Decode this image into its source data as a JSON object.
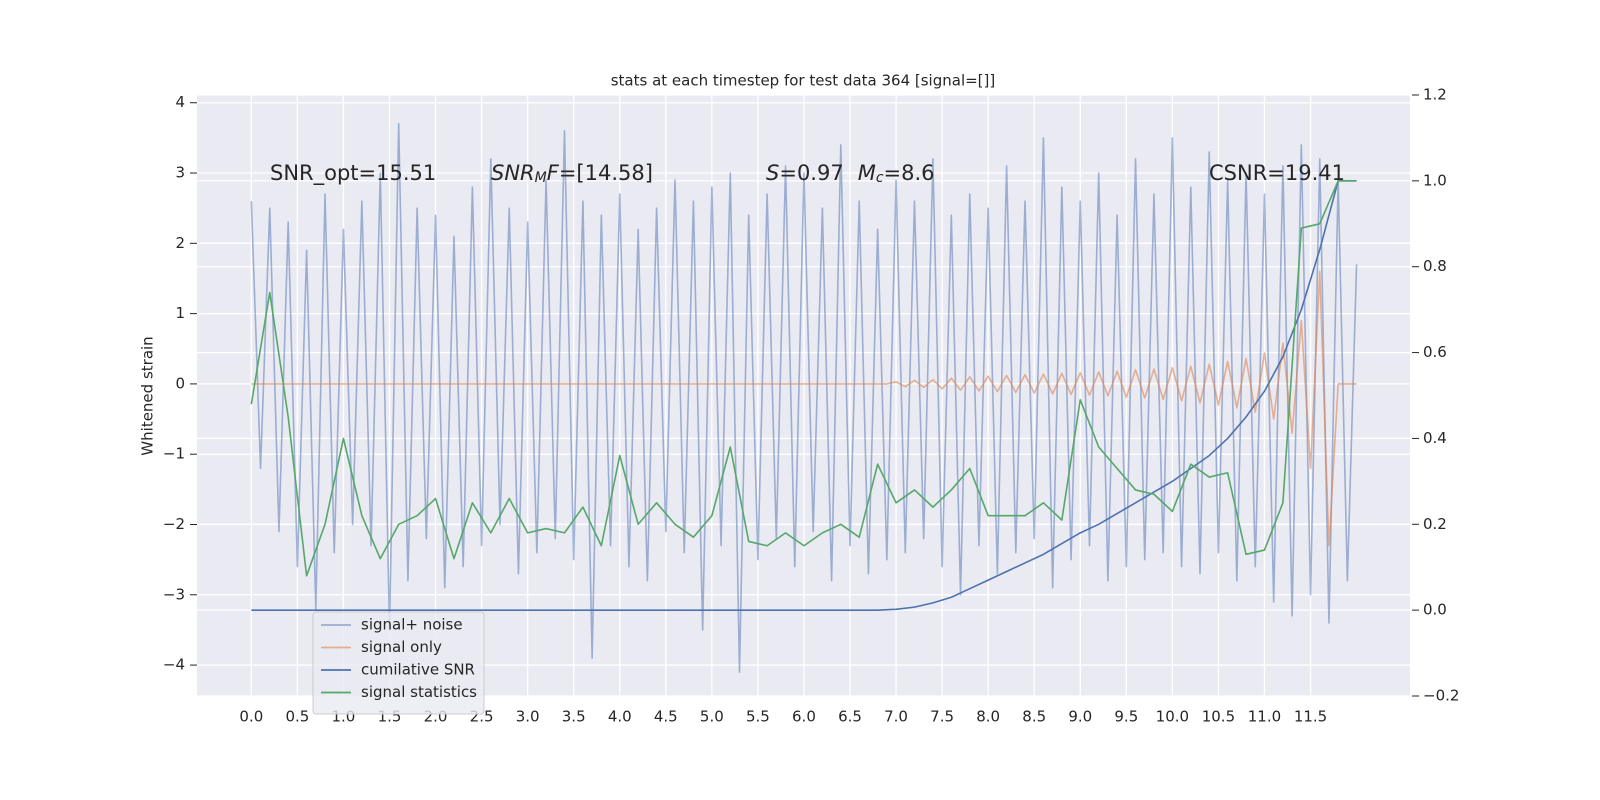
{
  "chart_data": {
    "type": "line",
    "title": "stats at each timestep for test data 364 [signal=[]]",
    "ylabel": "Whitened strain",
    "xlim": [
      -0.59,
      12.58
    ],
    "ylim": [
      -4.44,
      4.11
    ],
    "y2lim": [
      -0.2,
      1.2
    ],
    "grid": true,
    "legend": "lower left",
    "background": "#eaeaf2",
    "xticks": [
      {
        "value": 0,
        "label": "0.0"
      },
      0.5,
      {
        "value": 1,
        "label": "1.0"
      },
      1.5,
      {
        "value": 2,
        "label": "2.0"
      },
      2.5,
      {
        "value": 3,
        "label": "3.0"
      },
      3.5,
      {
        "value": 4,
        "label": "4.0"
      },
      4.5,
      {
        "value": 5,
        "label": "5.0"
      },
      5.5,
      {
        "value": 6,
        "label": "6.0"
      },
      6.5,
      {
        "value": 7,
        "label": "7.0"
      },
      7.5,
      {
        "value": 8,
        "label": "8.0"
      },
      8.5,
      {
        "value": 9,
        "label": "9.0"
      },
      9.5,
      {
        "value": 10,
        "label": "10.0"
      },
      10.5,
      {
        "value": 11,
        "label": "11.0"
      },
      11.5
    ],
    "yticks": [
      {
        "value": -4,
        "label": "−4"
      },
      {
        "value": -3,
        "label": "−3"
      },
      {
        "value": -2,
        "label": "−2"
      },
      {
        "value": -1,
        "label": "−1"
      },
      0,
      1,
      2,
      3,
      4
    ],
    "y2ticks": [
      {
        "value": -0.2,
        "label": "−0.2"
      },
      {
        "value": 0,
        "label": "0.0"
      },
      0.2,
      0.4,
      0.6,
      0.8,
      {
        "value": 1,
        "label": "1.0"
      },
      1.2
    ],
    "annotations": [
      [
        {
          "text": "SNR_opt=15.51",
          "style": "normal"
        }
      ],
      [
        {
          "text": "SNR",
          "style": "italic"
        },
        {
          "text": "M",
          "style": "sub"
        },
        {
          "text": "F",
          "style": "italic"
        },
        {
          "text": "=[14.58]",
          "style": "normal"
        }
      ],
      [
        {
          "text": "S",
          "style": "italic"
        },
        {
          "text": "=0.97",
          "style": "normal"
        },
        {
          "text": "M",
          "style": "italic"
        },
        {
          "text": "c",
          "style": "sub"
        },
        {
          "text": "=8.6",
          "style": "normal"
        }
      ],
      [
        {
          "text": "CSNR=19.41",
          "style": "normal"
        }
      ]
    ],
    "x": [
      0,
      0.1,
      0.2,
      0.3,
      0.4,
      0.5,
      0.6,
      0.7,
      0.8,
      0.9,
      1,
      1.1,
      1.2,
      1.3,
      1.4,
      1.5,
      1.6,
      1.7,
      1.8,
      1.9,
      2,
      2.1,
      2.2,
      2.3,
      2.4,
      2.5,
      2.6,
      2.7,
      2.8,
      2.9,
      3,
      3.1,
      3.2,
      3.3,
      3.4,
      3.5,
      3.6,
      3.7,
      3.8,
      3.9,
      4,
      4.1,
      4.2,
      4.3,
      4.4,
      4.5,
      4.6,
      4.7,
      4.8,
      4.9,
      5,
      5.1,
      5.2,
      5.3,
      5.4,
      5.5,
      5.6,
      5.7,
      5.8,
      5.9,
      6,
      6.1,
      6.2,
      6.3,
      6.4,
      6.5,
      6.6,
      6.7,
      6.8,
      6.9,
      7,
      7.1,
      7.2,
      7.3,
      7.4,
      7.5,
      7.6,
      7.7,
      7.8,
      7.9,
      8,
      8.1,
      8.2,
      8.3,
      8.4,
      8.5,
      8.6,
      8.7,
      8.8,
      8.9,
      9,
      9.1,
      9.2,
      9.3,
      9.4,
      9.5,
      9.6,
      9.7,
      9.8,
      9.9,
      10,
      10.1,
      10.2,
      10.3,
      10.4,
      10.5,
      10.6,
      10.7,
      10.8,
      10.9,
      11,
      11.1,
      11.2,
      11.3,
      11.4,
      11.5,
      11.6,
      11.7,
      11.8,
      11.9,
      12
    ],
    "series": [
      {
        "name": "signal+ noise",
        "color": "#4c72b0",
        "opacity": 0.5,
        "values": [
          2.6,
          -1.2,
          2.5,
          -2.1,
          2.3,
          -2.6,
          1.9,
          -3.2,
          2.7,
          -2.4,
          2.2,
          -2.0,
          2.6,
          -2.3,
          3.0,
          -3.5,
          3.7,
          -2.8,
          2.5,
          -2.2,
          2.4,
          -2.9,
          2.1,
          -2.6,
          2.8,
          -2.3,
          3.2,
          -2.0,
          2.5,
          -2.7,
          2.3,
          -2.4,
          2.9,
          -2.2,
          3.6,
          -2.5,
          2.6,
          -3.9,
          2.4,
          -2.3,
          2.7,
          -2.6,
          2.2,
          -2.8,
          2.5,
          -2.1,
          2.9,
          -2.4,
          2.6,
          -3.5,
          2.8,
          -2.3,
          3.0,
          -4.1,
          2.4,
          -2.5,
          2.7,
          -2.2,
          3.1,
          -2.6,
          3.0,
          -2.1,
          2.5,
          -2.8,
          3.4,
          -2.3,
          2.6,
          -2.7,
          2.2,
          -2.5,
          2.9,
          -2.4,
          2.6,
          -2.2,
          3.2,
          -2.6,
          2.4,
          -3.0,
          2.7,
          -2.3,
          2.5,
          -2.7,
          3.1,
          -2.4,
          2.6,
          -2.2,
          3.5,
          -2.9,
          2.8,
          -2.5,
          2.6,
          -2.3,
          3.0,
          -2.8,
          2.4,
          -2.6,
          3.2,
          -2.5,
          2.7,
          -2.4,
          3.5,
          -2.6,
          2.8,
          -2.7,
          3.3,
          -2.4,
          2.9,
          -2.8,
          3.0,
          -2.6,
          2.7,
          -3.1,
          3.1,
          -3.3,
          3.4,
          -3.0,
          3.2,
          -3.4,
          2.9,
          -2.8,
          1.7
        ]
      },
      {
        "name": "signal only",
        "color": "#dd8452",
        "opacity": 0.6,
        "values": [
          0,
          0,
          0,
          0,
          0,
          0,
          0,
          0,
          0,
          0,
          0,
          0,
          0,
          0,
          0,
          0,
          0,
          0,
          0,
          0,
          0,
          0,
          0,
          0,
          0,
          0,
          0,
          0,
          0,
          0,
          0,
          0,
          0,
          0,
          0,
          0,
          0,
          0,
          0,
          0,
          0,
          0,
          0,
          0,
          0,
          0,
          0,
          0,
          0,
          0,
          0,
          0,
          0,
          0,
          0,
          0,
          0,
          0,
          0,
          0,
          0,
          0,
          0,
          0,
          0,
          0,
          0,
          0,
          0,
          0,
          0.03,
          -0.04,
          0.05,
          -0.05,
          0.06,
          -0.07,
          0.08,
          -0.09,
          0.1,
          -0.1,
          0.11,
          -0.11,
          0.12,
          -0.12,
          0.13,
          -0.13,
          0.14,
          -0.14,
          0.15,
          -0.15,
          0.16,
          -0.16,
          0.17,
          -0.17,
          0.18,
          -0.19,
          0.2,
          -0.2,
          0.21,
          -0.22,
          0.23,
          -0.24,
          0.25,
          -0.27,
          0.28,
          -0.3,
          0.32,
          -0.34,
          0.36,
          -0.4,
          0.44,
          -0.5,
          0.58,
          -0.7,
          0.9,
          -1.2,
          1.6,
          -2.3,
          0,
          0,
          0
        ]
      },
      {
        "name": "cumilative SNR",
        "color": "#4c72b0",
        "opacity": 1,
        "axis": "y2",
        "x": [
          0,
          0.2,
          0.4,
          0.6,
          0.8,
          1,
          1.2,
          1.4,
          1.6,
          1.8,
          2,
          2.2,
          2.4,
          2.6,
          2.8,
          3,
          3.2,
          3.4,
          3.6,
          3.8,
          4,
          4.2,
          4.4,
          4.6,
          4.8,
          5,
          5.2,
          5.4,
          5.6,
          5.8,
          6,
          6.2,
          6.4,
          6.6,
          6.8,
          7,
          7.2,
          7.4,
          7.6,
          7.8,
          8,
          8.2,
          8.4,
          8.6,
          8.8,
          9,
          9.2,
          9.4,
          9.6,
          9.8,
          10,
          10.2,
          10.4,
          10.6,
          10.8,
          11,
          11.2,
          11.4,
          11.6,
          11.8,
          12
        ],
        "values": [
          0,
          0,
          0,
          0,
          0,
          0,
          0,
          0,
          0,
          0,
          0,
          0,
          0,
          0,
          0,
          0,
          0,
          0,
          0,
          0,
          0,
          0,
          0,
          0,
          0,
          0,
          0,
          0,
          0,
          0,
          0,
          0,
          0,
          0,
          0,
          0.002,
          0.007,
          0.017,
          0.03,
          0.05,
          0.07,
          0.09,
          0.11,
          0.13,
          0.155,
          0.18,
          0.2,
          0.225,
          0.25,
          0.275,
          0.3,
          0.33,
          0.36,
          0.4,
          0.45,
          0.51,
          0.59,
          0.7,
          0.84,
          1,
          1
        ]
      },
      {
        "name": "signal statistics",
        "color": "#55a868",
        "opacity": 1,
        "axis": "y2",
        "x": [
          0,
          0.2,
          0.4,
          0.6,
          0.8,
          1,
          1.2,
          1.4,
          1.6,
          1.8,
          2,
          2.2,
          2.4,
          2.6,
          2.8,
          3,
          3.2,
          3.4,
          3.6,
          3.8,
          4,
          4.2,
          4.4,
          4.6,
          4.8,
          5,
          5.2,
          5.4,
          5.6,
          5.8,
          6,
          6.2,
          6.4,
          6.6,
          6.8,
          7,
          7.2,
          7.4,
          7.6,
          7.8,
          8,
          8.2,
          8.4,
          8.6,
          8.8,
          9,
          9.2,
          9.4,
          9.6,
          9.8,
          10,
          10.2,
          10.4,
          10.6,
          10.8,
          11,
          11.2,
          11.4,
          11.6,
          11.8,
          12
        ],
        "values": [
          0.48,
          0.74,
          0.45,
          0.08,
          0.2,
          0.4,
          0.22,
          0.12,
          0.2,
          0.22,
          0.26,
          0.12,
          0.25,
          0.18,
          0.26,
          0.18,
          0.19,
          0.18,
          0.24,
          0.15,
          0.36,
          0.2,
          0.25,
          0.2,
          0.17,
          0.22,
          0.38,
          0.16,
          0.15,
          0.18,
          0.15,
          0.18,
          0.2,
          0.17,
          0.34,
          0.25,
          0.28,
          0.24,
          0.28,
          0.33,
          0.22,
          0.22,
          0.22,
          0.25,
          0.21,
          0.49,
          0.38,
          0.33,
          0.28,
          0.27,
          0.23,
          0.34,
          0.31,
          0.32,
          0.13,
          0.14,
          0.25,
          0.89,
          0.9,
          1,
          1
        ]
      }
    ]
  }
}
